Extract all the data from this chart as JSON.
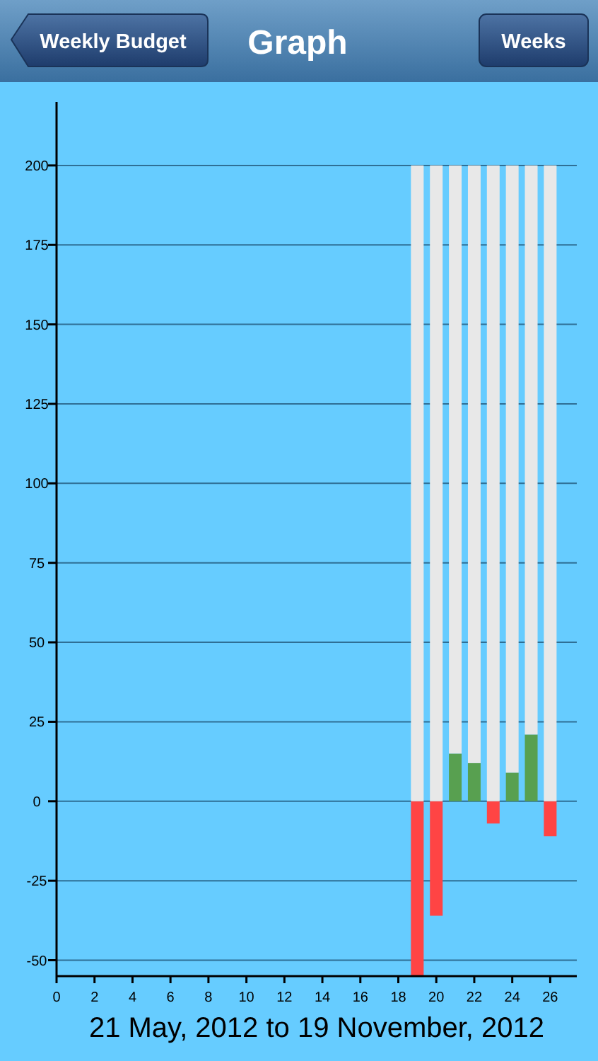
{
  "chart_data": {
    "type": "bar",
    "title": "Graph",
    "xlabel": "21 May, 2012 to 19 November, 2012",
    "annotations": [
      "Weekly Budget",
      "Weeks"
    ],
    "x": [
      19,
      20,
      21,
      22,
      23,
      24,
      25,
      26
    ],
    "stacked": true,
    "series": [
      {
        "colors": [
          "#ff4444",
          "#ff4444",
          "#58a050",
          "#58a050",
          "#ff4444",
          "#58a050",
          "#58a050",
          "#ff4444"
        ],
        "values": [
          -55,
          -36,
          15,
          12,
          -7,
          9,
          21,
          -11
        ]
      },
      {
        "color": "#e8e8e8",
        "values": [
          200,
          200,
          185,
          188,
          200,
          191,
          179,
          200
        ]
      }
    ],
    "xlim": [
      0,
      27.4
    ],
    "ylim": [
      -55,
      220
    ],
    "xticks": [
      0,
      2,
      4,
      6,
      8,
      10,
      12,
      14,
      16,
      18,
      20,
      22,
      24,
      26
    ],
    "yticks": [
      -50,
      -25,
      0,
      25,
      50,
      75,
      100,
      125,
      150,
      175,
      200
    ],
    "grid": "y"
  }
}
